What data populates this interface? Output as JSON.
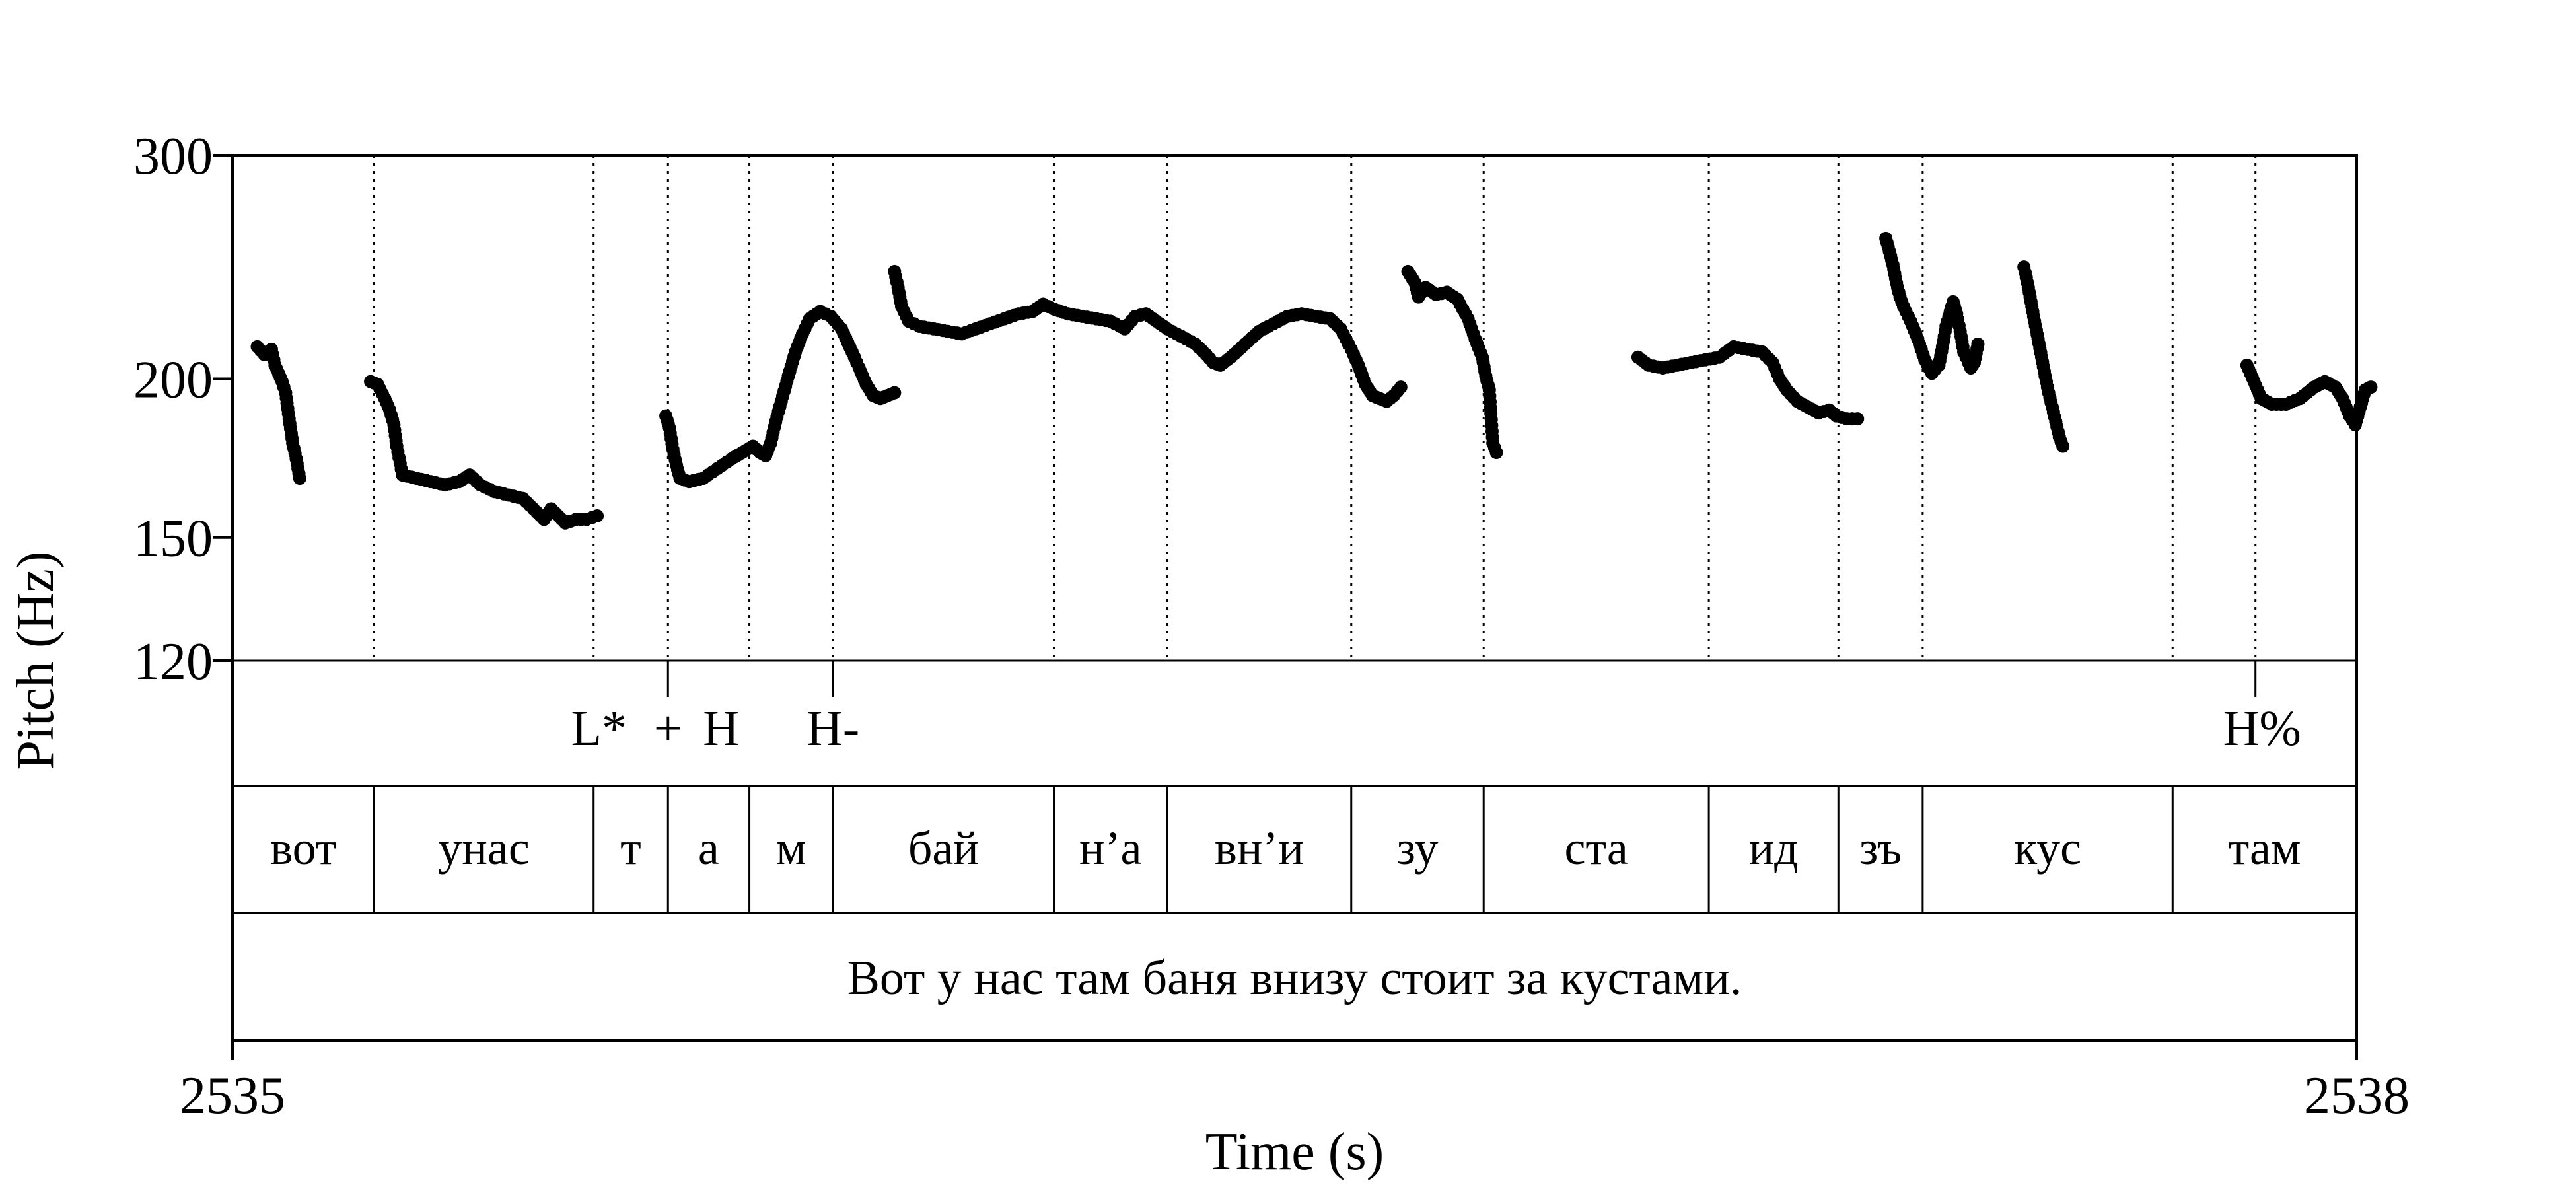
{
  "chart_data": {
    "type": "scatter",
    "title": "",
    "xlabel": "Time (s)",
    "ylabel": "Pitch (Hz)",
    "xlim": [
      2535,
      2538
    ],
    "ylim": [
      120,
      300
    ],
    "y_scale": "log",
    "x_ticks": [
      "2535",
      "2538"
    ],
    "y_ticks": [
      {
        "value": 300,
        "label": "300"
      },
      {
        "value": 200,
        "label": "200"
      },
      {
        "value": 150,
        "label": "150"
      },
      {
        "value": 120,
        "label": "120"
      }
    ],
    "boundaries": [
      2535.2,
      2535.51,
      2535.615,
      2535.73,
      2535.848,
      2536.16,
      2536.32,
      2536.58,
      2536.767,
      2537.085,
      2537.268,
      2537.387,
      2537.74,
      2537.857
    ],
    "tones": [
      {
        "label": "L*",
        "t": 2535.555,
        "anchor": "end"
      },
      {
        "label": "+",
        "t": 2535.615,
        "anchor": "middle"
      },
      {
        "label": "H",
        "t": 2535.69,
        "anchor": "middle"
      },
      {
        "label": "H-",
        "t": 2535.848,
        "anchor": "middle"
      },
      {
        "label": "H%",
        "t": 2537.857,
        "anchor": "middle"
      }
    ],
    "tone_marks": [
      2535.615,
      2535.848,
      2537.857
    ],
    "syllables": [
      {
        "label": "вот",
        "start": 2535.0,
        "end": 2535.2
      },
      {
        "label": "унас",
        "start": 2535.2,
        "end": 2535.51
      },
      {
        "label": "т",
        "start": 2535.51,
        "end": 2535.615
      },
      {
        "label": "а",
        "start": 2535.615,
        "end": 2535.73
      },
      {
        "label": "м",
        "start": 2535.73,
        "end": 2535.848
      },
      {
        "label": "бай",
        "start": 2535.848,
        "end": 2536.16
      },
      {
        "label": "н’а",
        "start": 2536.16,
        "end": 2536.32
      },
      {
        "label": "вн’и",
        "start": 2536.32,
        "end": 2536.58
      },
      {
        "label": "зу",
        "start": 2536.58,
        "end": 2536.767
      },
      {
        "label": "ста",
        "start": 2536.767,
        "end": 2537.085
      },
      {
        "label": "ид",
        "start": 2537.085,
        "end": 2537.268
      },
      {
        "label": "зъ",
        "start": 2537.268,
        "end": 2537.387
      },
      {
        "label": "кус",
        "start": 2537.387,
        "end": 2537.74
      },
      {
        "label": "там",
        "start": 2537.74,
        "end": 2538.0
      }
    ],
    "sentence": "Вот у нас там баня внизу стоит за кустами.",
    "segments": [
      [
        [
          2535.035,
          212
        ],
        [
          2535.045,
          209
        ],
        [
          2535.055,
          211
        ],
        [
          2535.06,
          205
        ],
        [
          2535.07,
          199
        ],
        [
          2535.075,
          195
        ],
        [
          2535.08,
          186
        ],
        [
          2535.085,
          178
        ],
        [
          2535.09,
          173
        ],
        [
          2535.095,
          167
        ]
      ],
      [
        [
          2535.195,
          199
        ],
        [
          2535.205,
          198
        ],
        [
          2535.215,
          193
        ],
        [
          2535.222,
          189
        ],
        [
          2535.228,
          184
        ],
        [
          2535.232,
          177
        ],
        [
          2535.24,
          168
        ],
        [
          2535.26,
          167
        ],
        [
          2535.28,
          166
        ],
        [
          2535.3,
          165
        ],
        [
          2535.32,
          166
        ],
        [
          2535.335,
          168
        ],
        [
          2535.35,
          165
        ],
        [
          2535.37,
          163
        ],
        [
          2535.39,
          162
        ],
        [
          2535.41,
          161
        ],
        [
          2535.42,
          159
        ],
        [
          2535.43,
          157
        ],
        [
          2535.44,
          155
        ],
        [
          2535.45,
          158
        ],
        [
          2535.46,
          156
        ],
        [
          2535.47,
          154
        ],
        [
          2535.485,
          155
        ],
        [
          2535.5,
          155
        ],
        [
          2535.515,
          156
        ]
      ],
      [
        [
          2535.612,
          187
        ],
        [
          2535.617,
          183
        ],
        [
          2535.622,
          176
        ],
        [
          2535.627,
          171
        ],
        [
          2535.632,
          167
        ],
        [
          2535.645,
          166
        ],
        [
          2535.665,
          167
        ],
        [
          2535.685,
          170
        ],
        [
          2535.705,
          173
        ],
        [
          2535.72,
          175
        ],
        [
          2535.735,
          177
        ],
        [
          2535.745,
          175
        ],
        [
          2535.753,
          174
        ],
        [
          2535.76,
          178
        ],
        [
          2535.767,
          185
        ],
        [
          2535.775,
          192
        ],
        [
          2535.785,
          201
        ],
        [
          2535.795,
          210
        ],
        [
          2535.805,
          217
        ],
        [
          2535.815,
          223
        ],
        [
          2535.83,
          226
        ],
        [
          2535.845,
          224
        ],
        [
          2535.86,
          219
        ],
        [
          2535.875,
          210
        ],
        [
          2535.885,
          204
        ],
        [
          2535.895,
          198
        ],
        [
          2535.905,
          194
        ],
        [
          2535.915,
          193
        ],
        [
          2535.925,
          194
        ],
        [
          2535.935,
          195
        ]
      ],
      [
        [
          2535.935,
          243
        ],
        [
          2535.94,
          236
        ],
        [
          2535.945,
          228
        ],
        [
          2535.955,
          222
        ],
        [
          2535.97,
          220
        ],
        [
          2535.99,
          219
        ],
        [
          2536.01,
          218
        ],
        [
          2536.03,
          217
        ],
        [
          2536.05,
          219
        ],
        [
          2536.07,
          221
        ],
        [
          2536.09,
          223
        ],
        [
          2536.11,
          225
        ],
        [
          2536.13,
          226
        ],
        [
          2536.145,
          229
        ],
        [
          2536.16,
          227
        ],
        [
          2536.18,
          225
        ],
        [
          2536.2,
          224
        ],
        [
          2536.22,
          223
        ],
        [
          2536.24,
          222
        ],
        [
          2536.26,
          219
        ],
        [
          2536.275,
          224
        ],
        [
          2536.29,
          225
        ],
        [
          2536.305,
          222
        ],
        [
          2536.32,
          219
        ],
        [
          2536.34,
          216
        ],
        [
          2536.36,
          213
        ],
        [
          2536.375,
          209
        ],
        [
          2536.385,
          206
        ],
        [
          2536.395,
          205
        ],
        [
          2536.41,
          208
        ],
        [
          2536.43,
          213
        ],
        [
          2536.45,
          218
        ],
        [
          2536.47,
          221
        ],
        [
          2536.49,
          224
        ],
        [
          2536.51,
          225
        ],
        [
          2536.53,
          224
        ],
        [
          2536.55,
          223
        ],
        [
          2536.565,
          219
        ],
        [
          2536.58,
          211
        ],
        [
          2536.59,
          205
        ],
        [
          2536.6,
          198
        ],
        [
          2536.61,
          194
        ],
        [
          2536.62,
          193
        ],
        [
          2536.63,
          192
        ],
        [
          2536.64,
          194
        ],
        [
          2536.65,
          197
        ]
      ],
      [
        [
          2536.66,
          243
        ],
        [
          2536.67,
          238
        ],
        [
          2536.675,
          232
        ],
        [
          2536.685,
          236
        ],
        [
          2536.7,
          233
        ],
        [
          2536.715,
          234
        ],
        [
          2536.73,
          231
        ],
        [
          2536.745,
          223
        ],
        [
          2536.755,
          215
        ],
        [
          2536.765,
          208
        ],
        [
          2536.77,
          201
        ],
        [
          2536.775,
          196
        ],
        [
          2536.78,
          178
        ],
        [
          2536.785,
          175
        ]
      ],
      [
        [
          2536.985,
          208
        ],
        [
          2537.0,
          205
        ],
        [
          2537.02,
          204
        ],
        [
          2537.04,
          205
        ],
        [
          2537.06,
          206
        ],
        [
          2537.08,
          207
        ],
        [
          2537.1,
          208
        ],
        [
          2537.12,
          212
        ],
        [
          2537.14,
          211
        ],
        [
          2537.16,
          210
        ],
        [
          2537.175,
          206
        ],
        [
          2537.185,
          200
        ],
        [
          2537.195,
          196
        ],
        [
          2537.21,
          192
        ],
        [
          2537.225,
          190
        ],
        [
          2537.24,
          188
        ],
        [
          2537.255,
          189
        ],
        [
          2537.265,
          187
        ],
        [
          2537.28,
          186
        ],
        [
          2537.295,
          186
        ]
      ],
      [
        [
          2537.335,
          258
        ],
        [
          2537.34,
          252
        ],
        [
          2537.345,
          246
        ],
        [
          2537.35,
          238
        ],
        [
          2537.355,
          232
        ],
        [
          2537.36,
          228
        ],
        [
          2537.37,
          222
        ],
        [
          2537.38,
          215
        ],
        [
          2537.39,
          207
        ],
        [
          2537.4,
          202
        ],
        [
          2537.41,
          205
        ],
        [
          2537.415,
          212
        ],
        [
          2537.42,
          220
        ],
        [
          2537.43,
          230
        ],
        [
          2537.435,
          225
        ],
        [
          2537.44,
          218
        ],
        [
          2537.445,
          210
        ],
        [
          2537.455,
          204
        ],
        [
          2537.46,
          206
        ],
        [
          2537.465,
          213
        ]
      ],
      [
        [
          2537.53,
          245
        ],
        [
          2537.535,
          238
        ],
        [
          2537.54,
          230
        ],
        [
          2537.545,
          222
        ],
        [
          2537.55,
          215
        ],
        [
          2537.555,
          208
        ],
        [
          2537.56,
          201
        ],
        [
          2537.565,
          195
        ],
        [
          2537.57,
          190
        ],
        [
          2537.575,
          185
        ],
        [
          2537.58,
          180
        ],
        [
          2537.585,
          177
        ]
      ],
      [
        [
          2537.845,
          205
        ],
        [
          2537.855,
          199
        ],
        [
          2537.865,
          193
        ],
        [
          2537.88,
          191
        ],
        [
          2537.9,
          191
        ],
        [
          2537.92,
          193
        ],
        [
          2537.94,
          197
        ],
        [
          2537.955,
          199
        ],
        [
          2537.97,
          197
        ],
        [
          2537.98,
          193
        ],
        [
          2537.99,
          187
        ],
        [
          2537.998,
          184
        ],
        [
          2538.005,
          190
        ],
        [
          2538.012,
          196
        ],
        [
          2538.02,
          197
        ]
      ]
    ]
  }
}
